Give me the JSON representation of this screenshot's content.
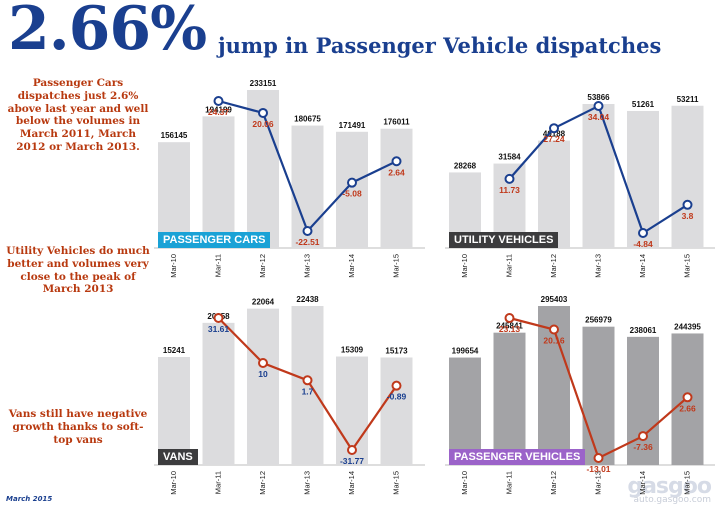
{
  "headline": {
    "big": "2.66%",
    "rest": "jump in Passenger Vehicle dispatches"
  },
  "notes": [
    "Passenger Cars dispatches just 2.6% above last year and well below the volumes in March 2011, March 2012 or March 2013.",
    "Utility Vehicles do much better and volumes very close to the peak of March 2013",
    "Vans still have negative growth thanks to soft-top vans"
  ],
  "footer": {
    "date": "March 2015"
  },
  "watermark": {
    "logo": "gasgoo",
    "url": "auto.gasgoo.com"
  },
  "colors": {
    "blue_line": "#1a3f8f",
    "red_line": "#c0391b",
    "light_bar": "#dcdcde",
    "dark_bar": "#a3a3a6",
    "cyan_badge": "#1aa2d6",
    "dark_badge": "#3c3c3e",
    "purple_badge": "#9b63c9"
  },
  "chart_data": [
    {
      "type": "bar",
      "label": "PASSENGER CARS",
      "categories": [
        "Mar-10",
        "Mar-11",
        "Mar-12",
        "Mar-13",
        "Mar-14",
        "Mar-15"
      ],
      "values": [
        156145,
        194199,
        233151,
        180675,
        171491,
        176011
      ],
      "value_labels": [
        "156145",
        "194199",
        "233151",
        "180675",
        "171491",
        "176011"
      ],
      "growth": [
        null,
        24.37,
        20.06,
        -22.51,
        -5.08,
        2.64
      ],
      "growth_labels": [
        "",
        "24.37",
        "20.06",
        "-22.51",
        "-5.08",
        "2.64"
      ]
    },
    {
      "type": "bar",
      "label": "UTILITY VEHICLES",
      "categories": [
        "Mar-10",
        "Mar-11",
        "Mar-12",
        "Mar-13",
        "Mar-14",
        "Mar-15"
      ],
      "values": [
        28268,
        31584,
        40188,
        53866,
        51261,
        53211
      ],
      "value_labels": [
        "28268",
        "31584",
        "40188",
        "53866",
        "51261",
        "53211"
      ],
      "growth": [
        null,
        11.73,
        27.24,
        34.04,
        -4.84,
        3.8
      ],
      "growth_labels": [
        "",
        "11.73",
        "27.24",
        "34.04",
        "-4.84",
        "3.8"
      ]
    },
    {
      "type": "bar",
      "label": "VANS",
      "categories": [
        "Mar-10",
        "Mar-11",
        "Mar-12",
        "Mar-13",
        "Mar-14",
        "Mar-15"
      ],
      "values": [
        15241,
        20058,
        22064,
        22438,
        15309,
        15173
      ],
      "value_labels": [
        "15241",
        "20058",
        "22064",
        "22438",
        "15309",
        "15173"
      ],
      "growth": [
        null,
        31.61,
        10,
        1.7,
        -31.77,
        -0.89
      ],
      "growth_labels": [
        "",
        "31.61",
        "10",
        "1.7",
        "-31.77",
        "-0.89"
      ]
    },
    {
      "type": "bar",
      "label": "PASSENGER VEHICLES",
      "categories": [
        "Mar-10",
        "Mar-11",
        "Mar-12",
        "Mar-13",
        "Mar-14",
        "Mar-15"
      ],
      "values": [
        199654,
        245841,
        295403,
        256979,
        238061,
        244395
      ],
      "value_labels": [
        "199654",
        "245841",
        "295403",
        "256979",
        "238061",
        "244395"
      ],
      "growth": [
        null,
        23.13,
        20.16,
        -13.01,
        -7.36,
        2.66
      ],
      "growth_labels": [
        "",
        "23.13",
        "20.16",
        "-13.01",
        "-7.36",
        "2.66"
      ]
    }
  ]
}
